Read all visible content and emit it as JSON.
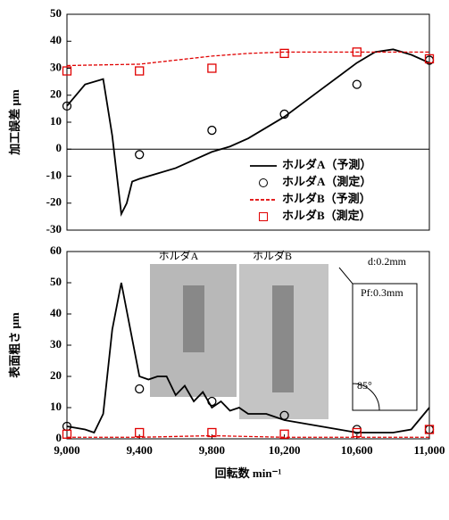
{
  "chart_data": [
    {
      "type": "line",
      "ylabel": "加工誤差 μm",
      "xlim": [
        9000,
        11000
      ],
      "ylim": [
        -30,
        50
      ],
      "yticks": [
        -30,
        -20,
        -10,
        0,
        10,
        20,
        30,
        40,
        50
      ],
      "legend": "lower right",
      "series": [
        {
          "name": "ホルダA（予測）",
          "color": "#000000",
          "style": "solid",
          "marker": "none",
          "x": [
            9000,
            9100,
            9200,
            9250,
            9300,
            9330,
            9360,
            9400,
            9500,
            9600,
            9700,
            9800,
            9900,
            10000,
            10200,
            10400,
            10600,
            10700,
            10800,
            10900,
            11000
          ],
          "values": [
            16,
            24,
            26,
            5,
            -24,
            -20,
            -12,
            -11,
            -9,
            -7,
            -4,
            -1,
            1,
            4,
            12,
            22,
            32,
            36,
            37,
            35,
            32
          ]
        },
        {
          "name": "ホルダA（測定）",
          "color": "#000000",
          "style": "none",
          "marker": "circle",
          "x": [
            9000,
            9400,
            9800,
            10200,
            10600,
            11000
          ],
          "values": [
            16,
            -2,
            7,
            13,
            24,
            33
          ]
        },
        {
          "name": "ホルダB（予測）",
          "color": "#e00000",
          "style": "dashed",
          "marker": "none",
          "x": [
            9000,
            9400,
            9600,
            9800,
            10000,
            10200,
            10600,
            11000
          ],
          "values": [
            31,
            31.5,
            33,
            34.5,
            35.5,
            36,
            36,
            36
          ]
        },
        {
          "name": "ホルダB（測定）",
          "color": "#e00000",
          "style": "none",
          "marker": "square",
          "x": [
            9000,
            9400,
            9800,
            10200,
            10600,
            11000
          ],
          "values": [
            29,
            29,
            30,
            35.5,
            36,
            33.5
          ]
        }
      ]
    },
    {
      "type": "line",
      "ylabel": "表面粗さ μm",
      "xlabel": "回転数 min⁻¹",
      "xlim": [
        9000,
        11000
      ],
      "ylim": [
        0,
        60
      ],
      "yticks": [
        0,
        10,
        20,
        30,
        40,
        50,
        60
      ],
      "xticks": [
        {
          "value": 9000,
          "label": "9,000"
        },
        {
          "value": 9400,
          "label": "9,400"
        },
        {
          "value": 9800,
          "label": "9,800"
        },
        {
          "value": 10200,
          "label": "10,200"
        },
        {
          "value": 10600,
          "label": "10,600"
        },
        {
          "value": 11000,
          "label": "11,000"
        }
      ],
      "annotations": [
        "ホルダA",
        "ホルダB",
        "d:0.2mm",
        "Pf:0.3mm",
        "85°"
      ],
      "series": [
        {
          "color": "#000000",
          "style": "solid",
          "marker": "none",
          "x": [
            9000,
            9100,
            9150,
            9200,
            9250,
            9300,
            9350,
            9400,
            9450,
            9500,
            9550,
            9600,
            9650,
            9700,
            9750,
            9800,
            9850,
            9900,
            9950,
            10000,
            10100,
            10200,
            10300,
            10400,
            10500,
            10600,
            10700,
            10800,
            10900,
            11000
          ],
          "values": [
            4,
            3,
            2,
            8,
            35,
            50,
            35,
            20,
            19,
            20,
            20,
            14,
            17,
            12,
            15,
            10,
            12,
            9,
            10,
            8,
            8,
            6,
            5,
            4,
            3,
            2,
            2,
            2,
            3,
            10
          ]
        },
        {
          "color": "#000000",
          "style": "none",
          "marker": "circle",
          "x": [
            9000,
            9400,
            9800,
            10200,
            10600,
            11000
          ],
          "values": [
            4,
            16,
            12,
            7.5,
            3,
            3
          ]
        },
        {
          "color": "#e00000",
          "style": "dashed",
          "marker": "none",
          "x": [
            9000,
            9400,
            9800,
            10200,
            10600,
            11000
          ],
          "values": [
            0.5,
            0.5,
            1,
            0.5,
            0.5,
            0.5
          ]
        },
        {
          "color": "#e00000",
          "style": "none",
          "marker": "square",
          "x": [
            9000,
            9400,
            9800,
            10200,
            10600,
            11000
          ],
          "values": [
            1.5,
            2,
            2,
            1.5,
            2,
            3
          ]
        }
      ]
    }
  ]
}
